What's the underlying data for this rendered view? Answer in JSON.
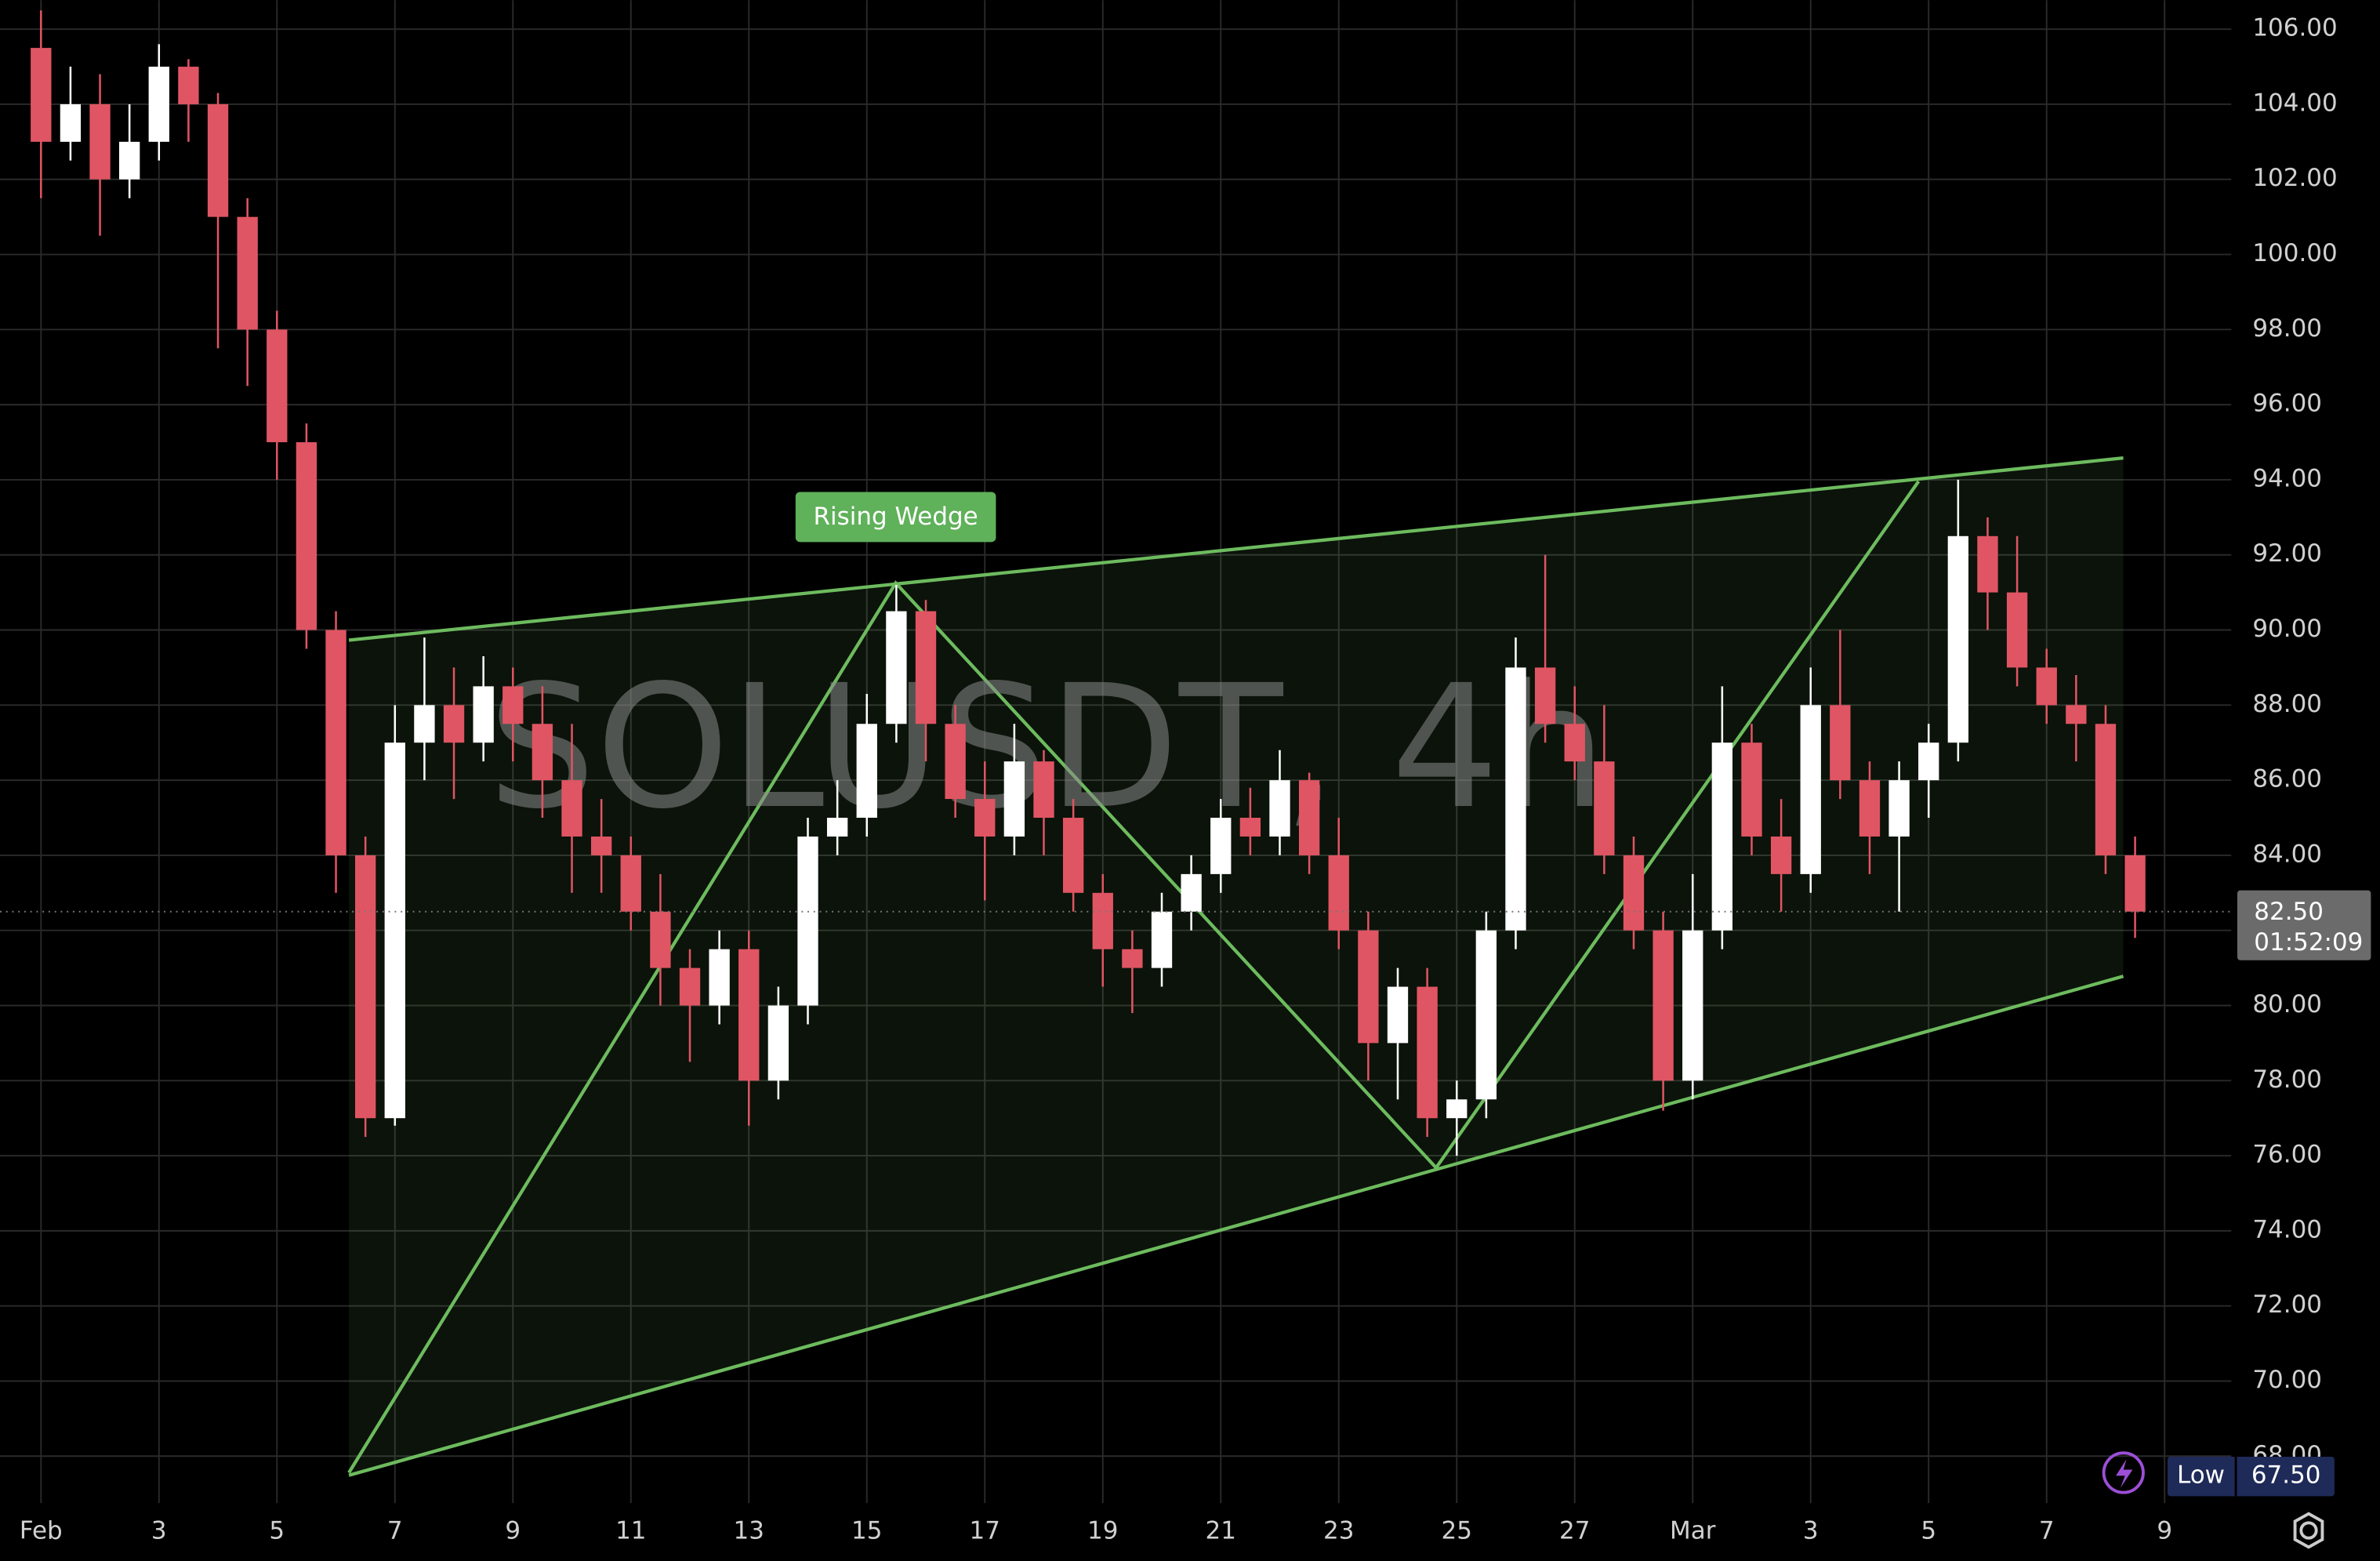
{
  "chart_data": {
    "type": "candlestick",
    "watermark": "SOLUSDT, 4h",
    "up_color": "#ffffff",
    "down_color": "#e05563",
    "grid": true,
    "xlim": [
      -0.695,
      37.13
    ],
    "ylim": [
      66.75,
      106.77
    ],
    "xticks": [
      {
        "value": 0,
        "label": "Feb"
      },
      {
        "value": 2,
        "label": "3"
      },
      {
        "value": 4,
        "label": "5"
      },
      {
        "value": 6,
        "label": "7"
      },
      {
        "value": 8,
        "label": "9"
      },
      {
        "value": 10,
        "label": "11"
      },
      {
        "value": 12,
        "label": "13"
      },
      {
        "value": 14,
        "label": "15"
      },
      {
        "value": 16,
        "label": "17"
      },
      {
        "value": 18,
        "label": "19"
      },
      {
        "value": 20,
        "label": "21"
      },
      {
        "value": 22,
        "label": "23"
      },
      {
        "value": 24,
        "label": "25"
      },
      {
        "value": 26,
        "label": "27"
      },
      {
        "value": 28,
        "label": "Mar"
      },
      {
        "value": 30,
        "label": "3"
      },
      {
        "value": 32,
        "label": "5"
      },
      {
        "value": 34,
        "label": "7"
      },
      {
        "value": 36,
        "label": "9"
      }
    ],
    "yticks": [
      {
        "value": 68,
        "label": "68.00"
      },
      {
        "value": 70,
        "label": "70.00"
      },
      {
        "value": 72,
        "label": "72.00"
      },
      {
        "value": 74,
        "label": "74.00"
      },
      {
        "value": 76,
        "label": "76.00"
      },
      {
        "value": 78,
        "label": "78.00"
      },
      {
        "value": 80,
        "label": "80.00"
      },
      {
        "value": 82,
        "label": "82.00"
      },
      {
        "value": 84,
        "label": "84.00"
      },
      {
        "value": 86,
        "label": "86.00"
      },
      {
        "value": 88,
        "label": "88.00"
      },
      {
        "value": 90,
        "label": "90.00"
      },
      {
        "value": 92,
        "label": "92.00"
      },
      {
        "value": 94,
        "label": "94.00"
      },
      {
        "value": 96,
        "label": "96.00"
      },
      {
        "value": 98,
        "label": "98.00"
      },
      {
        "value": 100,
        "label": "100.00"
      },
      {
        "value": 102,
        "label": "102.00"
      },
      {
        "value": 104,
        "label": "104.00"
      },
      {
        "value": 106,
        "label": "106.00"
      }
    ],
    "candles": {
      "x": [
        0,
        0.5,
        1,
        1.5,
        2,
        2.5,
        3,
        3.5,
        4,
        4.5,
        5,
        5.5,
        6,
        6.5,
        7,
        7.5,
        8,
        8.5,
        9,
        9.5,
        10,
        10.5,
        11,
        11.5,
        12,
        12.5,
        13,
        13.5,
        14,
        14.5,
        15,
        15.5,
        16,
        16.5,
        17,
        17.5,
        18,
        18.5,
        19,
        19.5,
        20,
        20.5,
        21,
        21.5,
        22,
        22.5,
        23,
        23.5,
        24,
        24.5,
        25,
        25.5,
        26,
        26.5,
        27,
        27.5,
        28,
        28.5,
        29,
        29.5,
        30,
        30.5,
        31,
        31.5,
        32,
        32.5,
        33,
        33.5,
        34,
        34.5,
        35,
        35.5
      ],
      "open": [
        105.5,
        103,
        104,
        102,
        103,
        105,
        104,
        101,
        98,
        95,
        90,
        84,
        77,
        87,
        88,
        87,
        88.5,
        87.5,
        86,
        84.5,
        84,
        82.5,
        81,
        80,
        81.5,
        78,
        80,
        84.5,
        85,
        87.5,
        90.5,
        87.5,
        85.5,
        84.5,
        86.5,
        85,
        83,
        81.5,
        81,
        82.5,
        83.5,
        85,
        84.5,
        86,
        84,
        82,
        79,
        80.5,
        77,
        77.5,
        82,
        89,
        87.5,
        86.5,
        84,
        82,
        78,
        82,
        87,
        84.5,
        83.5,
        88,
        86,
        84.5,
        86,
        87,
        92.5,
        91,
        89,
        88,
        87.5,
        84
      ],
      "high": [
        106.5,
        105,
        104.8,
        104,
        105.6,
        105.2,
        104.3,
        101.5,
        98.5,
        95.5,
        90.5,
        84.5,
        88,
        89.8,
        89,
        89.3,
        89,
        88.5,
        87.5,
        85.5,
        84.5,
        83.5,
        81.5,
        82,
        82,
        80.5,
        85,
        86,
        88.3,
        91.2,
        90.8,
        88,
        86.5,
        87.5,
        86.8,
        85.5,
        83.5,
        82,
        83,
        84,
        85.5,
        85.8,
        86.8,
        86.2,
        85,
        82.5,
        81,
        81,
        78,
        82.5,
        89.8,
        92,
        88.5,
        88,
        84.5,
        82.5,
        83.5,
        88.5,
        87.5,
        85.5,
        89,
        90,
        86.5,
        86.5,
        87.5,
        94,
        93,
        92.5,
        89.5,
        88.8,
        88,
        84.5
      ],
      "low": [
        101.5,
        102.5,
        100.5,
        101.5,
        102.5,
        103,
        97.5,
        96.5,
        94,
        89.5,
        83,
        76.5,
        76.8,
        86,
        85.5,
        86.5,
        86.5,
        85,
        83,
        83,
        82,
        80,
        78.5,
        79.5,
        76.8,
        77.5,
        79.5,
        84,
        84.5,
        87,
        86.5,
        85,
        82.8,
        84,
        84,
        82.5,
        80.5,
        79.8,
        80.5,
        82,
        83,
        84,
        84,
        83.5,
        81.5,
        78,
        77.5,
        76.5,
        76,
        77,
        81.5,
        87,
        86,
        83.5,
        81.5,
        77.2,
        77.5,
        81.5,
        84,
        82.5,
        83,
        85.5,
        83.5,
        82.5,
        85,
        86.5,
        90,
        88.5,
        87.5,
        86.5,
        83.5,
        81.8
      ],
      "close": [
        103,
        104,
        102,
        103,
        105,
        104,
        101,
        98,
        95,
        90,
        84,
        77,
        87,
        88,
        87,
        88.5,
        87.5,
        86,
        84.5,
        84,
        82.5,
        81,
        80,
        81.5,
        78,
        80,
        84.5,
        85,
        87.5,
        90.5,
        87.5,
        85.5,
        84.5,
        86.5,
        85,
        83,
        81.5,
        81,
        82.5,
        83.5,
        85,
        84.5,
        86,
        84,
        82,
        79,
        80.5,
        77,
        77.5,
        82,
        89,
        87.5,
        86.5,
        84,
        82,
        78,
        82,
        87,
        84.5,
        83.5,
        88,
        86,
        84.5,
        86,
        87,
        92.5,
        91,
        89,
        88,
        87.5,
        84,
        82.5
      ]
    },
    "pattern": {
      "name": "Rising Wedge",
      "color": "#6dbb5e",
      "upper": {
        "x": [
          5.22,
          35.3
        ],
        "y": [
          89.73,
          94.58
        ]
      },
      "lower": {
        "x": [
          5.22,
          35.3
        ],
        "y": [
          67.49,
          80.78
        ]
      },
      "zigzag": {
        "x": [
          5.22,
          14.49,
          23.65,
          31.83
        ],
        "y": [
          67.56,
          91.25,
          75.68,
          93.96
        ]
      }
    },
    "last_price": {
      "value": 82.5,
      "value_label": "82.50",
      "countdown": "01:52:09"
    },
    "low": {
      "label": "Low",
      "value": 67.5,
      "value_label": "67.50"
    }
  }
}
